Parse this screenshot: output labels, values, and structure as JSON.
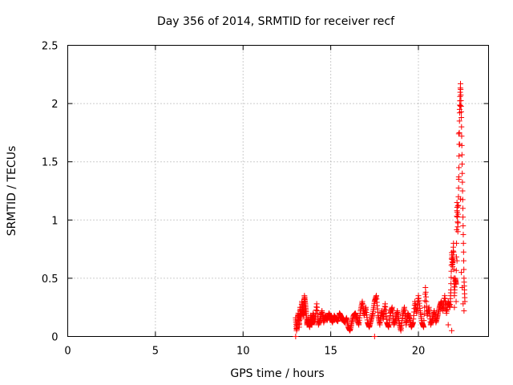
{
  "chart_data": {
    "type": "scatter",
    "title": "Day 356 of 2014, SRMTID for receiver recf",
    "xlabel": "GPS time / hours",
    "ylabel": "SRMTID / TECUs",
    "xlim": [
      0,
      24
    ],
    "ylim": [
      0,
      2.5
    ],
    "xticks": [
      0,
      5,
      10,
      15,
      20
    ],
    "yticks": [
      0,
      0.5,
      1,
      1.5,
      2,
      2.5
    ],
    "ytick_labels": [
      "0",
      "0.5",
      "1",
      "1.5",
      "2",
      "2.5"
    ],
    "grid": true,
    "marker": "+",
    "color": "#ff0000",
    "series": [
      {
        "x": [
          13.0,
          13.05,
          13.1,
          13.15,
          13.2,
          13.25,
          13.3,
          13.35,
          13.4,
          13.45,
          13.5,
          13.55,
          13.6,
          13.65,
          13.7,
          13.75,
          13.8,
          13.85,
          13.9,
          13.95,
          14.0,
          14.1,
          14.2,
          14.3,
          14.4,
          14.5,
          14.6,
          14.7,
          14.8,
          14.9,
          15.0,
          15.1,
          15.2,
          15.3,
          15.4,
          15.5,
          15.6,
          15.7,
          15.8,
          15.9,
          16.0,
          16.1,
          16.2,
          16.3,
          16.4,
          16.5,
          16.6,
          16.7,
          16.8,
          16.9,
          17.0,
          17.1,
          17.2,
          17.3,
          17.4,
          17.5,
          17.6,
          17.7,
          17.8,
          17.9,
          18.0,
          18.1,
          18.2,
          18.3,
          18.4,
          18.5,
          18.6,
          18.7,
          18.8,
          18.9,
          19.0,
          19.1,
          19.2,
          19.3,
          19.4,
          19.5,
          19.6,
          19.7,
          19.8,
          19.9,
          20.0,
          20.1,
          20.2,
          20.3,
          20.4,
          20.5,
          20.6,
          20.7,
          20.8,
          20.9,
          21.0,
          21.1,
          21.2,
          21.3,
          21.4,
          21.5,
          21.6,
          21.7,
          21.8,
          21.85,
          21.9,
          21.95,
          22.0,
          22.05,
          22.1,
          22.15,
          22.2,
          22.25,
          22.3,
          22.35,
          22.4,
          22.45,
          22.5,
          22.55,
          22.6,
          22.65
        ],
        "y": [
          0.16,
          0.05,
          0.12,
          0.2,
          0.08,
          0.25,
          0.15,
          0.3,
          0.22,
          0.18,
          0.35,
          0.28,
          0.2,
          0.1,
          0.15,
          0.12,
          0.08,
          0.18,
          0.1,
          0.14,
          0.2,
          0.12,
          0.28,
          0.1,
          0.15,
          0.22,
          0.12,
          0.18,
          0.14,
          0.2,
          0.16,
          0.12,
          0.18,
          0.15,
          0.13,
          0.2,
          0.17,
          0.14,
          0.12,
          0.16,
          0.08,
          0.05,
          0.12,
          0.18,
          0.2,
          0.15,
          0.1,
          0.22,
          0.3,
          0.18,
          0.25,
          0.12,
          0.08,
          0.14,
          0.2,
          0.3,
          0.35,
          0.18,
          0.1,
          0.22,
          0.15,
          0.28,
          0.12,
          0.08,
          0.2,
          0.25,
          0.1,
          0.15,
          0.22,
          0.12,
          0.05,
          0.18,
          0.25,
          0.1,
          0.2,
          0.15,
          0.08,
          0.12,
          0.3,
          0.2,
          0.35,
          0.22,
          0.12,
          0.08,
          0.42,
          0.18,
          0.25,
          0.1,
          0.15,
          0.22,
          0.12,
          0.18,
          0.25,
          0.3,
          0.22,
          0.35,
          0.2,
          0.3,
          0.25,
          0.4,
          0.72,
          0.6,
          0.8,
          0.35,
          0.5,
          0.45,
          1.15,
          0.9,
          1.35,
          1.95,
          2.17,
          1.88,
          1.4,
          0.95,
          0.5,
          0.3
        ],
        "extra_markers": [
          {
            "x": 21.7,
            "y": 0.1
          },
          {
            "x": 21.9,
            "y": 0.05
          },
          {
            "x": 22.05,
            "y": 0.25
          },
          {
            "x": 22.15,
            "y": 0.3
          },
          {
            "x": 22.2,
            "y": 0.65
          },
          {
            "x": 22.2,
            "y": 1.08
          },
          {
            "x": 22.25,
            "y": 1.12
          },
          {
            "x": 22.3,
            "y": 1.74
          },
          {
            "x": 22.3,
            "y": 1.37
          },
          {
            "x": 22.35,
            "y": 1.65
          },
          {
            "x": 22.35,
            "y": 1.92
          },
          {
            "x": 22.4,
            "y": 1.98
          },
          {
            "x": 22.4,
            "y": 1.18
          },
          {
            "x": 22.45,
            "y": 0.55
          },
          {
            "x": 22.5,
            "y": 0.42
          },
          {
            "x": 22.55,
            "y": 0.28
          },
          {
            "x": 22.6,
            "y": 0.22
          },
          {
            "x": 13.0,
            "y": 0.0
          },
          {
            "x": 17.5,
            "y": 0.0
          }
        ]
      }
    ]
  }
}
